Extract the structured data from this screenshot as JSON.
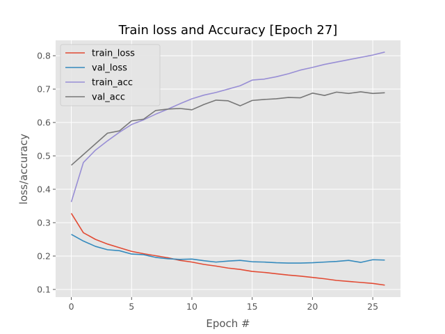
{
  "chart_data": {
    "type": "line",
    "title": "Train loss and Accuracy [Epoch 27]",
    "xlabel": "Epoch #",
    "ylabel": "loss/accuracy",
    "xlim": [
      -1.3,
      27.3
    ],
    "ylim": [
      0.077,
      0.846
    ],
    "xticks": [
      0,
      5,
      10,
      15,
      20,
      25
    ],
    "yticks": [
      0.1,
      0.2,
      0.3,
      0.4,
      0.5,
      0.6,
      0.7,
      0.8
    ],
    "grid": true,
    "legend_position": "upper left",
    "x": [
      0,
      1,
      2,
      3,
      4,
      5,
      6,
      7,
      8,
      9,
      10,
      11,
      12,
      13,
      14,
      15,
      16,
      17,
      18,
      19,
      20,
      21,
      22,
      23,
      24,
      25,
      26
    ],
    "series": [
      {
        "name": "train_loss",
        "color": "#E24A33",
        "values": [
          0.328,
          0.27,
          0.25,
          0.236,
          0.225,
          0.214,
          0.207,
          0.201,
          0.195,
          0.187,
          0.182,
          0.175,
          0.17,
          0.164,
          0.16,
          0.154,
          0.151,
          0.147,
          0.143,
          0.14,
          0.136,
          0.132,
          0.127,
          0.124,
          0.121,
          0.118,
          0.113
        ]
      },
      {
        "name": "val_loss",
        "color": "#348ABD",
        "values": [
          0.265,
          0.245,
          0.229,
          0.219,
          0.216,
          0.206,
          0.204,
          0.196,
          0.192,
          0.19,
          0.191,
          0.186,
          0.182,
          0.185,
          0.187,
          0.183,
          0.182,
          0.18,
          0.179,
          0.179,
          0.18,
          0.182,
          0.184,
          0.187,
          0.181,
          0.189,
          0.188
        ]
      },
      {
        "name": "train_acc",
        "color": "#988ED5",
        "values": [
          0.362,
          0.48,
          0.517,
          0.545,
          0.571,
          0.594,
          0.608,
          0.625,
          0.64,
          0.656,
          0.671,
          0.682,
          0.69,
          0.7,
          0.71,
          0.727,
          0.73,
          0.737,
          0.746,
          0.757,
          0.765,
          0.774,
          0.781,
          0.788,
          0.795,
          0.802,
          0.811
        ]
      },
      {
        "name": "val_acc",
        "color": "#777777",
        "values": [
          0.472,
          0.504,
          0.536,
          0.568,
          0.575,
          0.605,
          0.61,
          0.636,
          0.64,
          0.642,
          0.638,
          0.654,
          0.667,
          0.665,
          0.65,
          0.666,
          0.669,
          0.671,
          0.675,
          0.674,
          0.688,
          0.681,
          0.691,
          0.687,
          0.692,
          0.687,
          0.689
        ]
      }
    ]
  }
}
